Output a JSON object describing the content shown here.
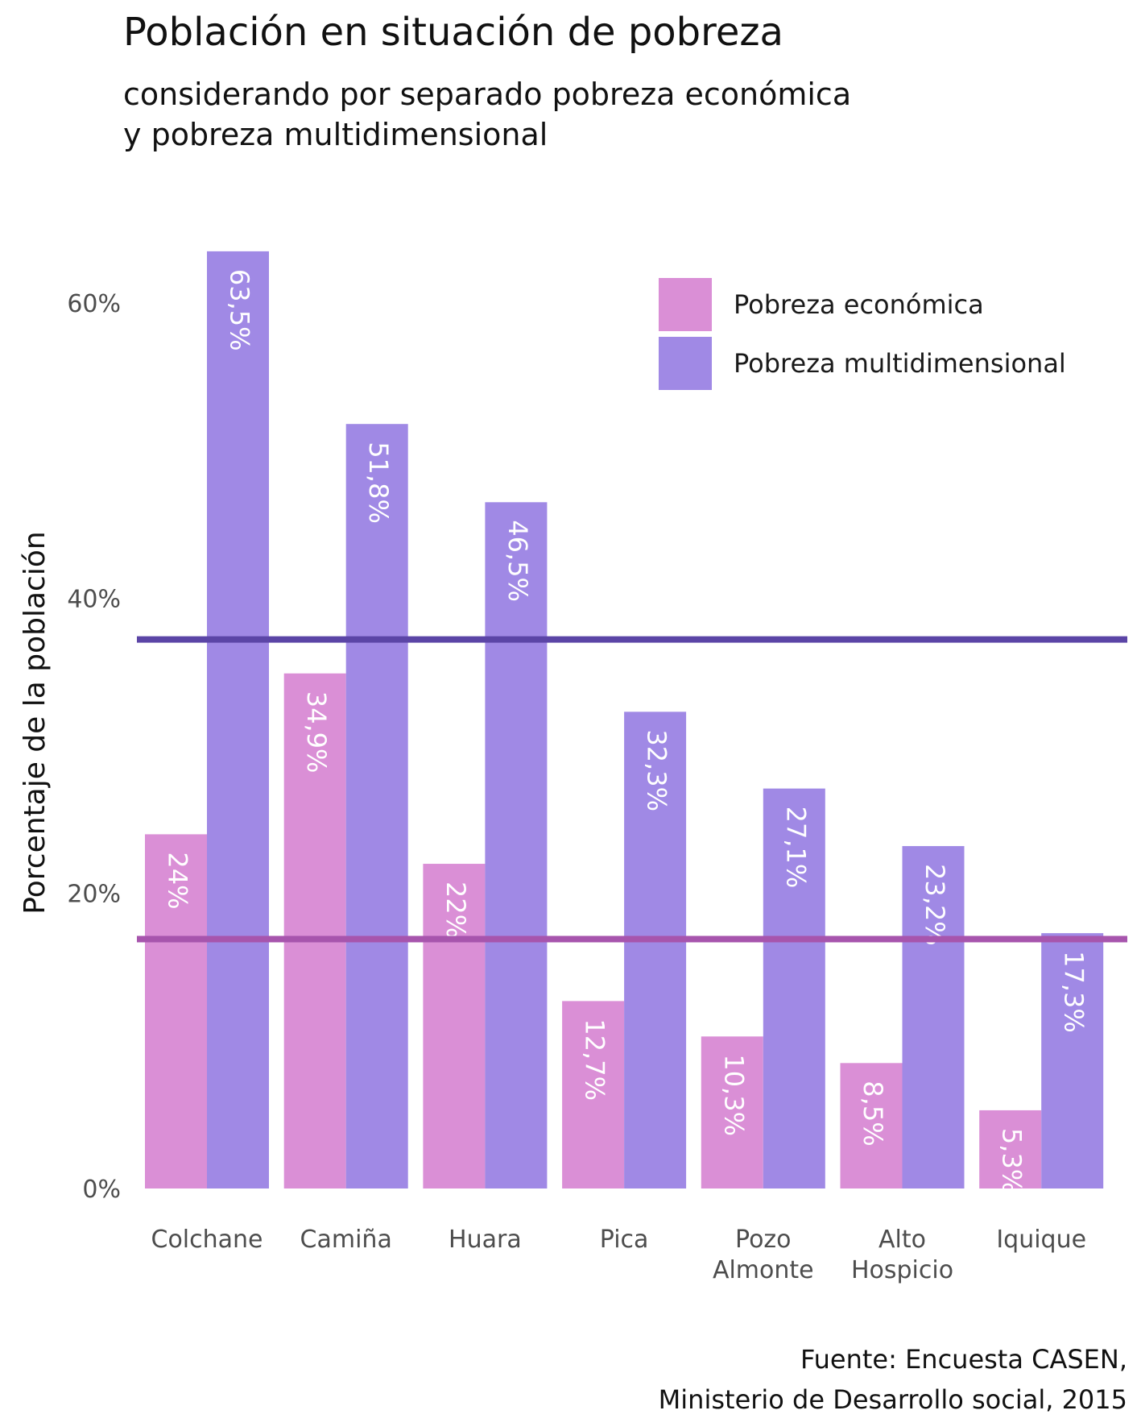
{
  "title": "Población en situación de pobreza",
  "subtitle_lines": [
    "considerando por separado pobreza económica",
    "y pobreza multidimensional"
  ],
  "caption_lines": [
    "Fuente: Encuesta CASEN,",
    "Ministerio de Desarrollo social, 2015"
  ],
  "chart_data": {
    "type": "bar",
    "categories": [
      [
        "Colchane"
      ],
      [
        "Camiña"
      ],
      [
        "Huara"
      ],
      [
        "Pica"
      ],
      [
        "Pozo",
        "Almonte"
      ],
      [
        "Alto",
        "Hospicio"
      ],
      [
        "Iquique"
      ]
    ],
    "series": [
      {
        "name": "Pobreza económica",
        "color": "#da8fd6",
        "values": [
          24,
          34.9,
          22,
          12.7,
          10.3,
          8.5,
          5.3
        ],
        "labels": [
          "24%",
          "34,9%",
          "22%",
          "12,7%",
          "10,3%",
          "8,5%",
          "5,3%"
        ]
      },
      {
        "name": "Pobreza multidimensional",
        "color": "#a089e5",
        "values": [
          63.5,
          51.8,
          46.5,
          32.3,
          27.1,
          23.2,
          17.3
        ],
        "labels": [
          "63,5%",
          "51,8%",
          "46,5%",
          "32,3%",
          "27,1%",
          "23,2%",
          "17,3%"
        ]
      }
    ],
    "reference_lines": [
      {
        "value": 37.2,
        "color": "#5b45a6"
      },
      {
        "value": 16.9,
        "color": "#a755ad"
      }
    ],
    "ylabel": "Porcentaje de la población",
    "ylim": [
      0,
      64
    ],
    "yticks": [
      0,
      20,
      40,
      60
    ],
    "ytick_labels": [
      "0%",
      "20%",
      "40%",
      "60%"
    ],
    "legend_position": "top-right",
    "grid": false
  }
}
